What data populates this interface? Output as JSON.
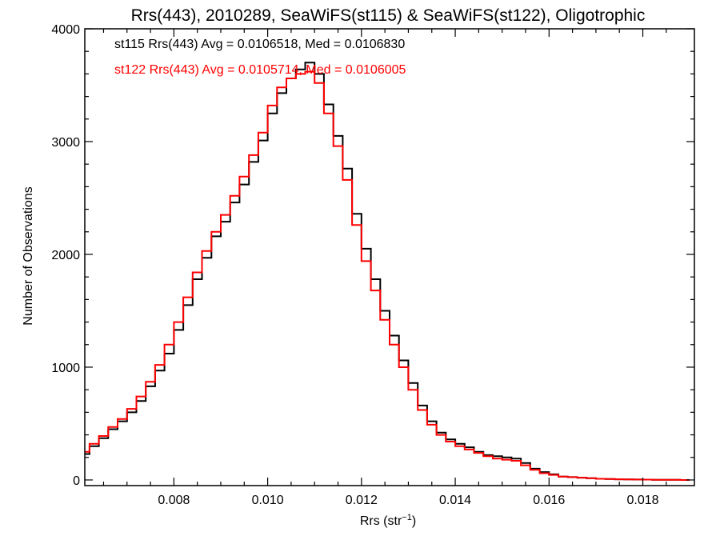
{
  "chart_data": {
    "type": "line",
    "style": "histogram-step",
    "title": "Rrs(443), 2010289, SeaWiFS(st115) & SeaWiFS(st122), Oligotrophic",
    "xlabel_main": "Rrs (str",
    "xlabel_sup": "−1",
    "xlabel_close": ")",
    "ylabel": "Number of Observations",
    "xlim": [
      0.0061,
      0.0191
    ],
    "ylim": [
      -50,
      4000
    ],
    "xticks": [
      "0.008",
      "0.010",
      "0.012",
      "0.014",
      "0.016",
      "0.018"
    ],
    "xtick_values": [
      0.008,
      0.01,
      0.012,
      0.014,
      0.016,
      0.018
    ],
    "yticks": [
      "0",
      "1000",
      "2000",
      "3000",
      "4000"
    ],
    "ytick_values": [
      0,
      1000,
      2000,
      3000,
      4000
    ],
    "grid": false,
    "legend_position": "top-left",
    "annotations": [
      "st115 Rrs(443) Avg = 0.0106518, Med = 0.0106830",
      "st122 Rrs(443) Avg = 0.0105714, Med = 0.0106005"
    ],
    "series": [
      {
        "name": "st115",
        "color": "#000000",
        "points": [
          [
            0.0061,
            230
          ],
          [
            0.0063,
            300
          ],
          [
            0.0065,
            370
          ],
          [
            0.0067,
            450
          ],
          [
            0.0069,
            520
          ],
          [
            0.0071,
            600
          ],
          [
            0.0073,
            700
          ],
          [
            0.0075,
            830
          ],
          [
            0.0077,
            970
          ],
          [
            0.0079,
            1120
          ],
          [
            0.0081,
            1330
          ],
          [
            0.0083,
            1550
          ],
          [
            0.0085,
            1780
          ],
          [
            0.0087,
            1970
          ],
          [
            0.0089,
            2160
          ],
          [
            0.0091,
            2290
          ],
          [
            0.0093,
            2460
          ],
          [
            0.0095,
            2620
          ],
          [
            0.0097,
            2820
          ],
          [
            0.0099,
            3010
          ],
          [
            0.0101,
            3250
          ],
          [
            0.0103,
            3430
          ],
          [
            0.0105,
            3560
          ],
          [
            0.0107,
            3640
          ],
          [
            0.0109,
            3700
          ],
          [
            0.0111,
            3600
          ],
          [
            0.0113,
            3330
          ],
          [
            0.0115,
            3050
          ],
          [
            0.0117,
            2760
          ],
          [
            0.0119,
            2360
          ],
          [
            0.0121,
            2050
          ],
          [
            0.0123,
            1780
          ],
          [
            0.0125,
            1500
          ],
          [
            0.0127,
            1280
          ],
          [
            0.0129,
            1060
          ],
          [
            0.0131,
            860
          ],
          [
            0.0133,
            660
          ],
          [
            0.0135,
            520
          ],
          [
            0.0137,
            420
          ],
          [
            0.0139,
            360
          ],
          [
            0.0141,
            320
          ],
          [
            0.0143,
            290
          ],
          [
            0.0145,
            250
          ],
          [
            0.0147,
            220
          ],
          [
            0.0149,
            210
          ],
          [
            0.0151,
            200
          ],
          [
            0.0153,
            190
          ],
          [
            0.0155,
            150
          ],
          [
            0.0157,
            100
          ],
          [
            0.0159,
            70
          ],
          [
            0.0161,
            50
          ],
          [
            0.0163,
            30
          ],
          [
            0.0165,
            25
          ],
          [
            0.0167,
            20
          ],
          [
            0.0169,
            15
          ],
          [
            0.0171,
            10
          ],
          [
            0.0173,
            8
          ],
          [
            0.0175,
            6
          ],
          [
            0.0177,
            5
          ],
          [
            0.0179,
            4
          ],
          [
            0.0181,
            3
          ],
          [
            0.0183,
            2
          ],
          [
            0.0185,
            1
          ],
          [
            0.0187,
            1
          ],
          [
            0.0189,
            0
          ]
        ]
      },
      {
        "name": "st122",
        "color": "#ff0000",
        "points": [
          [
            0.0061,
            250
          ],
          [
            0.0063,
            320
          ],
          [
            0.0065,
            390
          ],
          [
            0.0067,
            470
          ],
          [
            0.0069,
            540
          ],
          [
            0.0071,
            630
          ],
          [
            0.0073,
            740
          ],
          [
            0.0075,
            870
          ],
          [
            0.0077,
            1020
          ],
          [
            0.0079,
            1200
          ],
          [
            0.0081,
            1400
          ],
          [
            0.0083,
            1620
          ],
          [
            0.0085,
            1840
          ],
          [
            0.0087,
            2030
          ],
          [
            0.0089,
            2200
          ],
          [
            0.0091,
            2350
          ],
          [
            0.0093,
            2520
          ],
          [
            0.0095,
            2690
          ],
          [
            0.0097,
            2880
          ],
          [
            0.0099,
            3080
          ],
          [
            0.0101,
            3320
          ],
          [
            0.0103,
            3480
          ],
          [
            0.0105,
            3560
          ],
          [
            0.0107,
            3600
          ],
          [
            0.0109,
            3620
          ],
          [
            0.0111,
            3520
          ],
          [
            0.0113,
            3250
          ],
          [
            0.0115,
            2960
          ],
          [
            0.0117,
            2660
          ],
          [
            0.0119,
            2260
          ],
          [
            0.0121,
            1940
          ],
          [
            0.0123,
            1680
          ],
          [
            0.0125,
            1420
          ],
          [
            0.0127,
            1200
          ],
          [
            0.0129,
            1000
          ],
          [
            0.0131,
            800
          ],
          [
            0.0133,
            620
          ],
          [
            0.0135,
            490
          ],
          [
            0.0137,
            400
          ],
          [
            0.0139,
            340
          ],
          [
            0.0141,
            300
          ],
          [
            0.0143,
            270
          ],
          [
            0.0145,
            240
          ],
          [
            0.0147,
            210
          ],
          [
            0.0149,
            190
          ],
          [
            0.0151,
            180
          ],
          [
            0.0153,
            170
          ],
          [
            0.0155,
            130
          ],
          [
            0.0157,
            90
          ],
          [
            0.0159,
            60
          ],
          [
            0.0161,
            45
          ],
          [
            0.0163,
            30
          ],
          [
            0.0165,
            25
          ],
          [
            0.0167,
            20
          ],
          [
            0.0169,
            15
          ],
          [
            0.0171,
            10
          ],
          [
            0.0173,
            8
          ],
          [
            0.0175,
            6
          ],
          [
            0.0177,
            5
          ],
          [
            0.0179,
            4
          ],
          [
            0.0181,
            3
          ],
          [
            0.0183,
            2
          ],
          [
            0.0185,
            1
          ],
          [
            0.0187,
            1
          ],
          [
            0.0189,
            0
          ]
        ]
      }
    ]
  }
}
